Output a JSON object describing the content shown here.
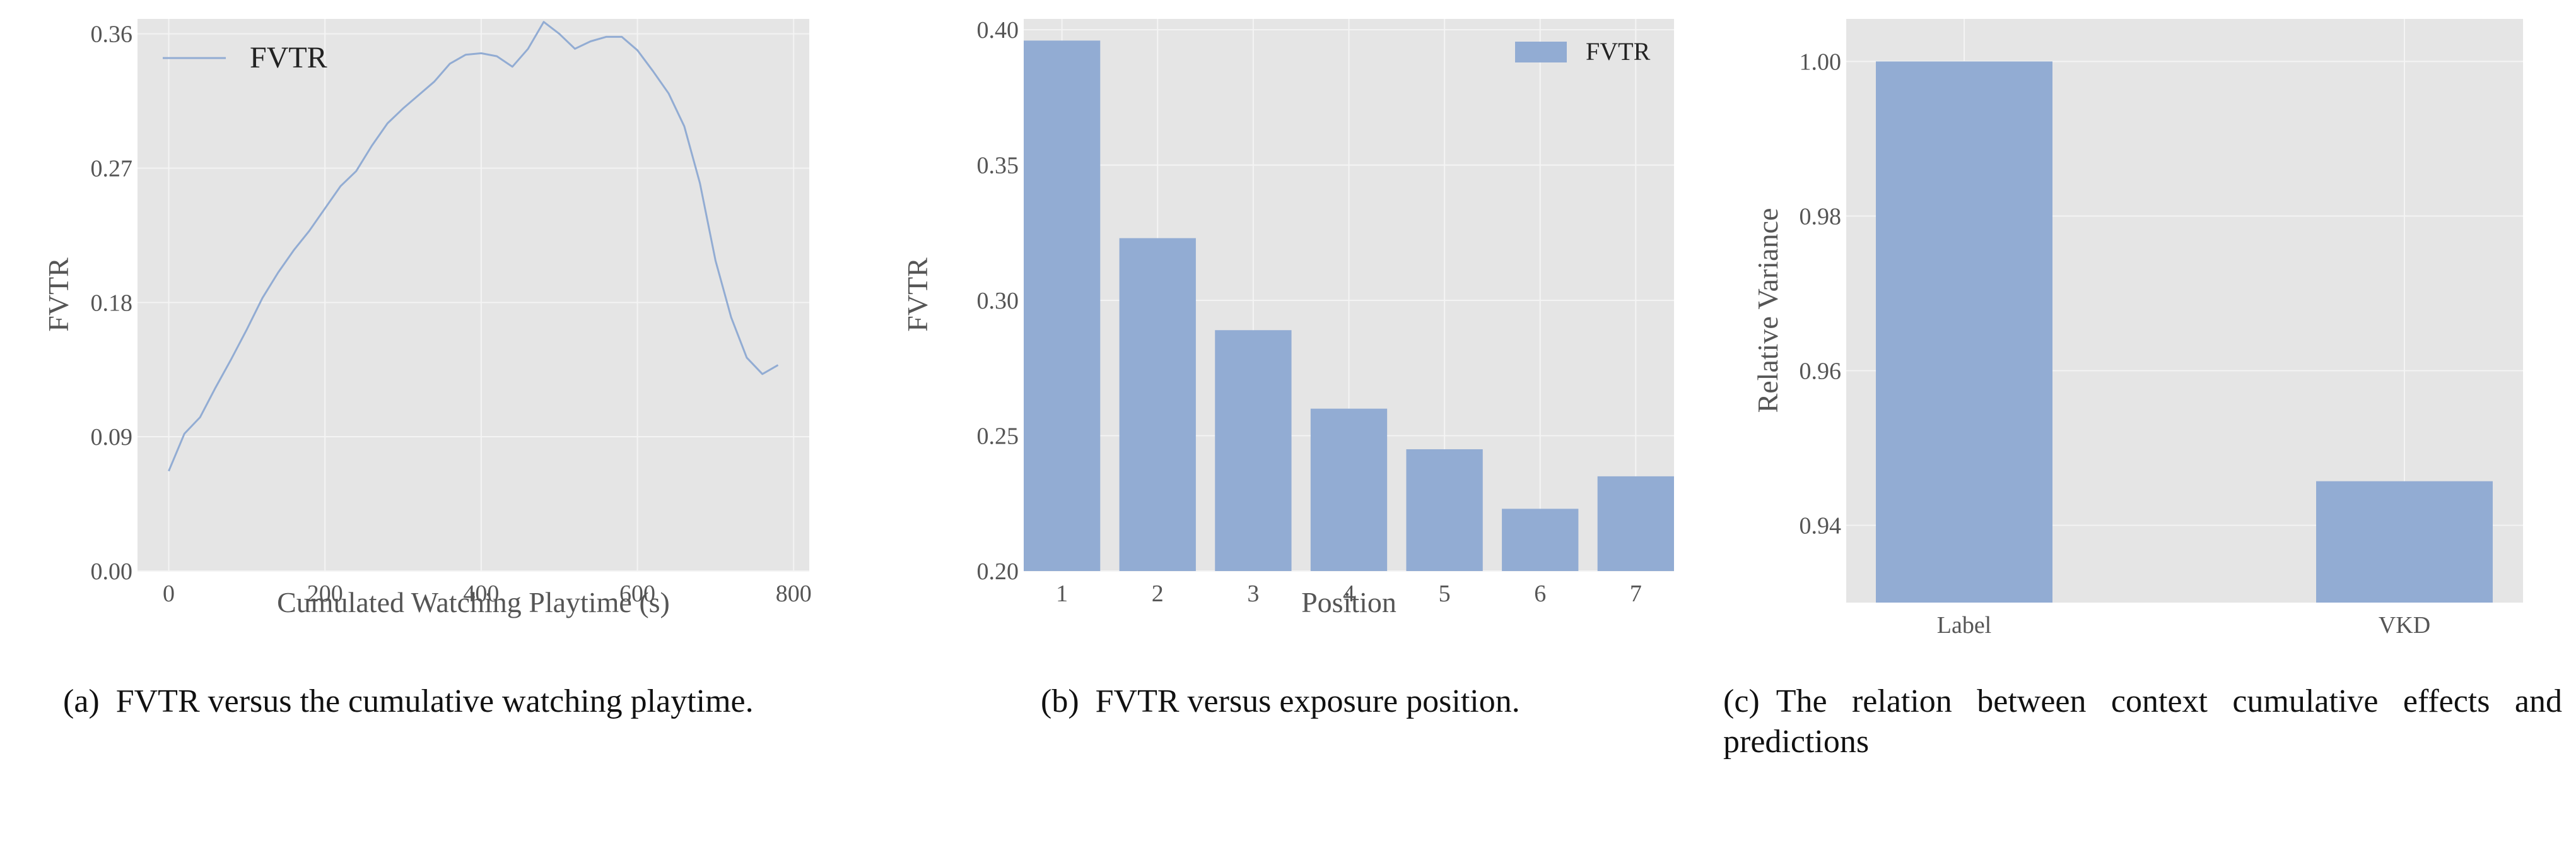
{
  "chart_data": [
    {
      "type": "line",
      "title": "",
      "xlabel": "Cumulated Watching Playtime (s)",
      "ylabel": "FVTR",
      "xlim": [
        -40,
        820
      ],
      "ylim": [
        0.0,
        0.37
      ],
      "xticks": [
        0,
        200,
        400,
        600,
        800
      ],
      "xtick_labels": [
        "0",
        "200",
        "400",
        "600",
        "800"
      ],
      "yticks": [
        0.0,
        0.09,
        0.18,
        0.27,
        0.36
      ],
      "ytick_labels": [
        "0.00",
        "0.09",
        "0.18",
        "0.27",
        "0.36"
      ],
      "grid": true,
      "legend": "top-left",
      "series": [
        {
          "name": "FVTR",
          "color": "#92acd3",
          "x": [
            0,
            20,
            40,
            60,
            80,
            100,
            120,
            140,
            160,
            180,
            200,
            220,
            240,
            260,
            280,
            300,
            320,
            340,
            360,
            380,
            400,
            420,
            440,
            460,
            480,
            500,
            520,
            540,
            560,
            580,
            600,
            620,
            640,
            660,
            680,
            700,
            720,
            740,
            760,
            780
          ],
          "y": [
            0.067,
            0.092,
            0.103,
            0.123,
            0.142,
            0.162,
            0.183,
            0.2,
            0.215,
            0.228,
            0.243,
            0.258,
            0.268,
            0.285,
            0.3,
            0.31,
            0.319,
            0.328,
            0.34,
            0.346,
            0.347,
            0.345,
            0.338,
            0.35,
            0.368,
            0.36,
            0.35,
            0.355,
            0.358,
            0.358,
            0.349,
            0.335,
            0.32,
            0.298,
            0.26,
            0.208,
            0.17,
            0.143,
            0.132,
            0.138
          ]
        }
      ]
    },
    {
      "type": "bar",
      "title": "",
      "xlabel": "Position",
      "ylabel": "FVTR",
      "categories": [
        "1",
        "2",
        "3",
        "4",
        "5",
        "6",
        "7"
      ],
      "ylim": [
        0.2,
        0.404
      ],
      "yticks": [
        0.2,
        0.25,
        0.3,
        0.35,
        0.4
      ],
      "ytick_labels": [
        "0.20",
        "0.25",
        "0.30",
        "0.35",
        "0.40"
      ],
      "grid": true,
      "legend": "top-right",
      "series": [
        {
          "name": "FVTR",
          "color": "#92acd3",
          "values": [
            0.396,
            0.323,
            0.289,
            0.26,
            0.245,
            0.223,
            0.235
          ]
        }
      ]
    },
    {
      "type": "bar",
      "title": "",
      "xlabel": "",
      "ylabel": "Relative Variance",
      "categories": [
        "Label",
        "VKD"
      ],
      "ylim": [
        0.93,
        1.0055
      ],
      "yticks": [
        0.94,
        0.96,
        0.98,
        1.0
      ],
      "ytick_labels": [
        "0.94",
        "0.96",
        "0.98",
        "1.00"
      ],
      "grid": true,
      "legend": "none",
      "series": [
        {
          "color": "#92acd3",
          "values": [
            1.0,
            0.9457
          ]
        }
      ]
    }
  ],
  "captions": {
    "a": "(a) FVTR versus the cumulative watching playtime.",
    "b": "(b) FVTR versus exposure position.",
    "c_line1": "(c) The relation between context cumulative effects and",
    "c_line2": "predictions"
  },
  "colors": {
    "panel_background": "#e5e5e5",
    "grid": "#f4f4f4",
    "bar": "#92acd3",
    "line": "#92acd3"
  }
}
